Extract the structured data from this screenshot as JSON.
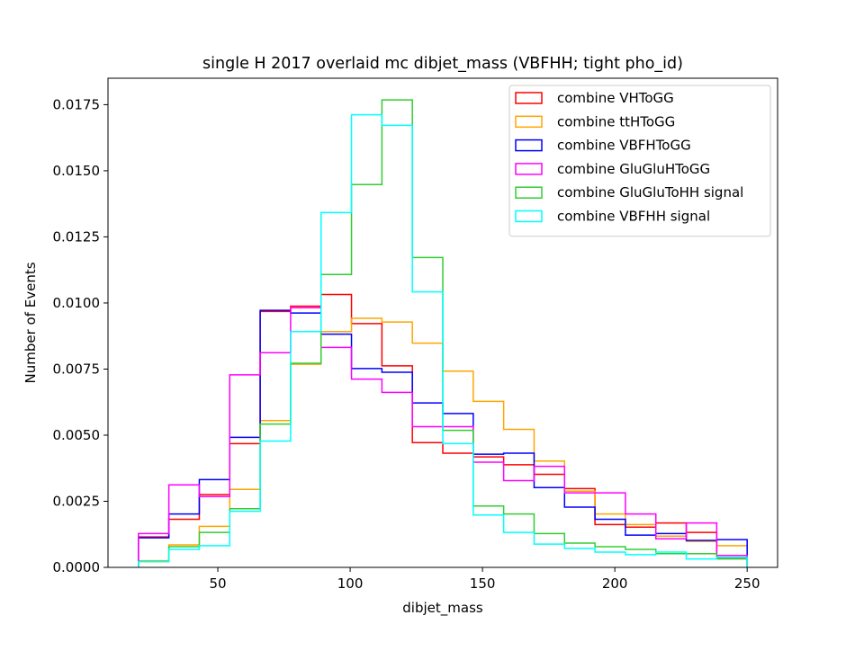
{
  "chart_data": {
    "type": "histogram-step",
    "title": "single H 2017 overlaid mc dibjet_mass (VBFHH; tight pho_id)",
    "xlabel": "dibjet_mass",
    "ylabel": "Number of Events",
    "xlim": [
      8.5,
      261.5
    ],
    "ylim": [
      0,
      0.0185
    ],
    "xticks": [
      50,
      100,
      150,
      200,
      250
    ],
    "yticks": [
      0.0,
      0.0025,
      0.005,
      0.0075,
      0.01,
      0.0125,
      0.015,
      0.0175
    ],
    "ytick_labels": [
      "0.0000",
      "0.0025",
      "0.0050",
      "0.0075",
      "0.0100",
      "0.0125",
      "0.0150",
      "0.0175"
    ],
    "grid": false,
    "legend_position": "top-right",
    "bin_edges": [
      20,
      31.5,
      43,
      54.5,
      66,
      77.5,
      89,
      100.5,
      112,
      123.5,
      135,
      146.5,
      158,
      169.5,
      181,
      192.5,
      204,
      215.5,
      227,
      238.5,
      250
    ],
    "series": [
      {
        "name": "combine VHToGG",
        "color": "#ff0000",
        "values": [
          0.00115,
          0.00182,
          0.00275,
          0.00468,
          0.00968,
          0.00988,
          0.01032,
          0.00922,
          0.00762,
          0.00472,
          0.00432,
          0.00418,
          0.00388,
          0.00352,
          0.00298,
          0.00162,
          0.00152,
          0.00168,
          0.00132,
          0.00035
        ]
      },
      {
        "name": "combine ttHToGG",
        "color": "#ffa500",
        "values": [
          0.00025,
          0.00085,
          0.00155,
          0.00295,
          0.00555,
          0.00768,
          0.00892,
          0.00942,
          0.00928,
          0.00848,
          0.00742,
          0.00628,
          0.00522,
          0.00402,
          0.00288,
          0.00202,
          0.00162,
          0.00118,
          0.00098,
          0.00082
        ]
      },
      {
        "name": "combine VBFHToGG",
        "color": "#0000ff",
        "values": [
          0.00112,
          0.00202,
          0.00332,
          0.00492,
          0.00972,
          0.00962,
          0.00882,
          0.00752,
          0.00738,
          0.00622,
          0.00582,
          0.00428,
          0.00432,
          0.00302,
          0.00228,
          0.00182,
          0.00122,
          0.00128,
          0.00102,
          0.00105
        ]
      },
      {
        "name": "combine GluGluHToGG",
        "color": "#ff00ff",
        "values": [
          0.00128,
          0.00312,
          0.00268,
          0.00728,
          0.00812,
          0.00982,
          0.00832,
          0.00712,
          0.00662,
          0.00532,
          0.00532,
          0.00398,
          0.00328,
          0.00382,
          0.00282,
          0.00282,
          0.00202,
          0.00108,
          0.00168,
          0.00045
        ]
      },
      {
        "name": "combine GluGluToHH signal",
        "color": "#32cd32",
        "values": [
          0.00022,
          0.00078,
          0.00132,
          0.00222,
          0.00542,
          0.00772,
          0.01108,
          0.01448,
          0.01768,
          0.01172,
          0.00518,
          0.00232,
          0.00202,
          0.00128,
          0.00092,
          0.00078,
          0.00068,
          0.00052,
          0.00052,
          0.00032
        ]
      },
      {
        "name": "combine VBFHH signal",
        "color": "#00ffff",
        "values": [
          0.00022,
          0.00068,
          0.00082,
          0.00212,
          0.00478,
          0.00892,
          0.01342,
          0.01712,
          0.01672,
          0.01042,
          0.00468,
          0.00198,
          0.00132,
          0.00088,
          0.00072,
          0.00058,
          0.00048,
          0.00058,
          0.00032,
          0.00038
        ]
      }
    ]
  }
}
